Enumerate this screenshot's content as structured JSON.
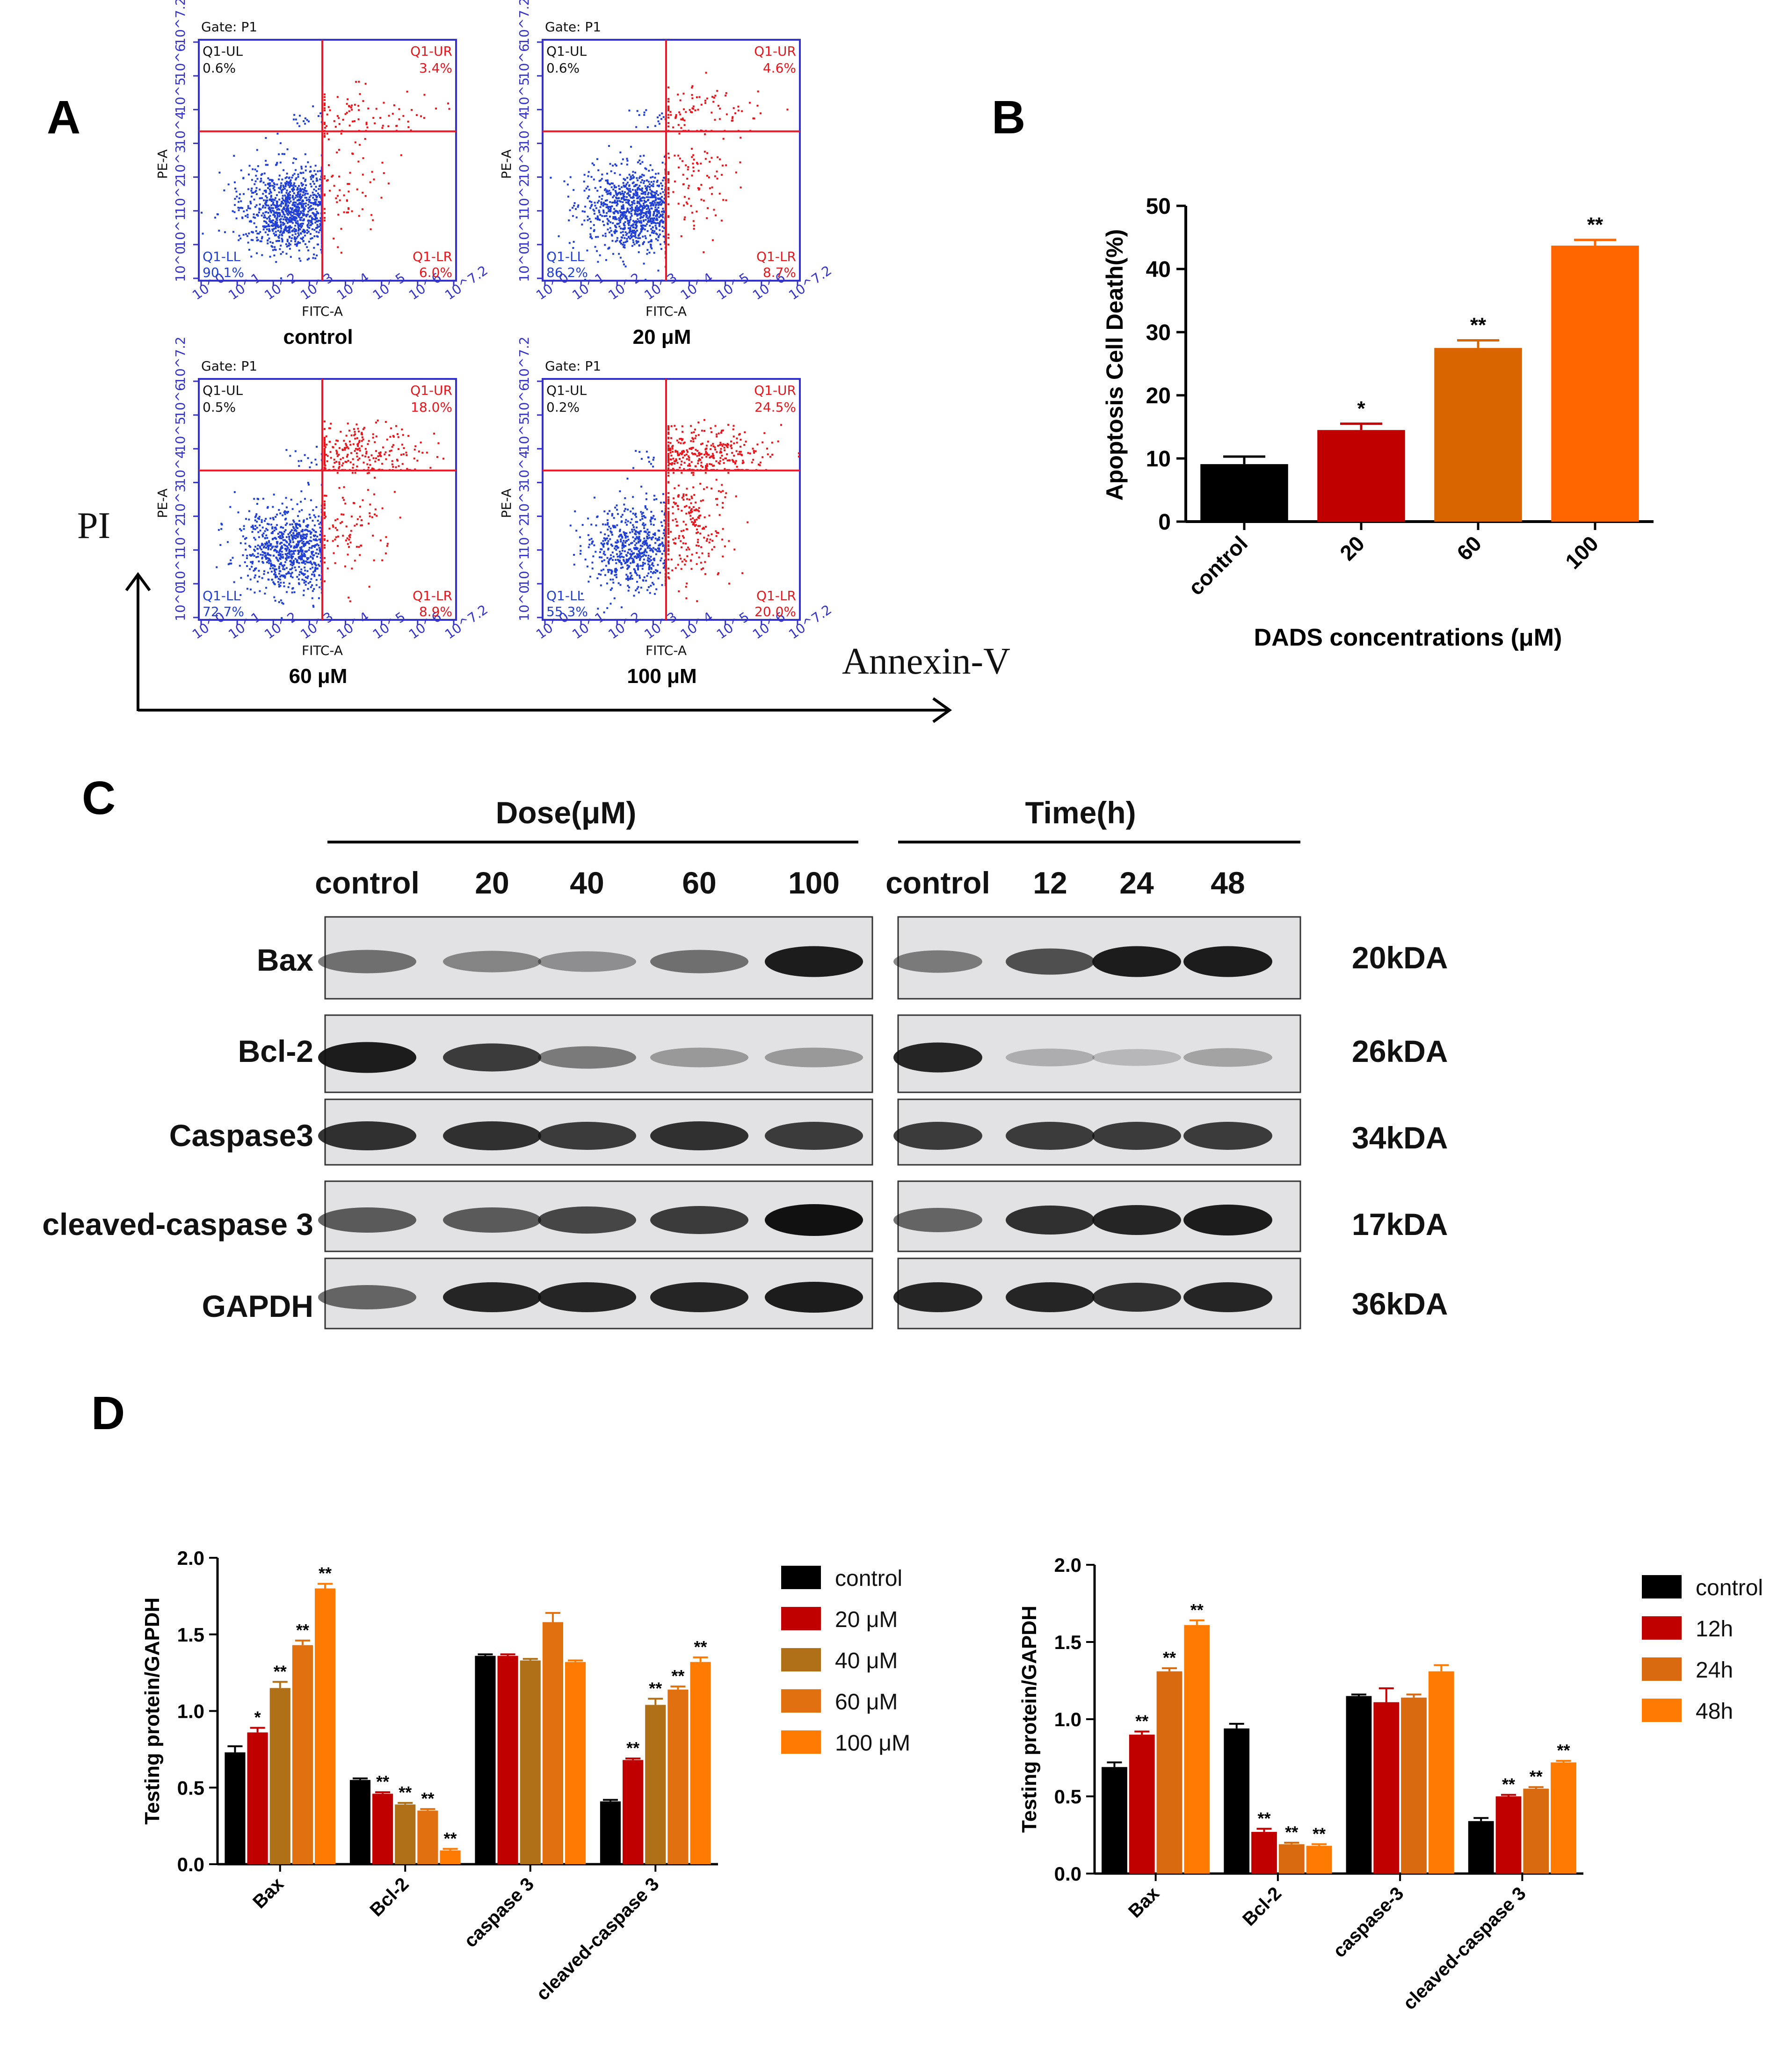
{
  "panels": {
    "a": "A",
    "b": "B",
    "c": "C",
    "d": "D"
  },
  "facs": {
    "gate": "Gate: P1",
    "x_axis": "FITC-A",
    "y_axis": "PE-A",
    "quad_names": {
      "ul": "Q1-UL",
      "ur": "Q1-UR",
      "ll": "Q1-LL",
      "lr": "Q1-LR"
    },
    "plots": [
      {
        "caption": "control",
        "ul": "0.6%",
        "ur": "3.4%",
        "ll": "90.1%",
        "lr": "6.0%"
      },
      {
        "caption": "20 μM",
        "ul": "0.6%",
        "ur": "4.6%",
        "ll": "86.2%",
        "lr": "8.7%"
      },
      {
        "caption": "60 μM",
        "ul": "0.5%",
        "ur": "18.0%",
        "ll": "72.7%",
        "lr": "8.9%"
      },
      {
        "caption": "100 μM",
        "ul": "0.2%",
        "ur": "24.5%",
        "ll": "55.3%",
        "lr": "20.0%"
      }
    ],
    "tick_labels": [
      "10^0",
      "10^1",
      "10^2",
      "10^3",
      "10^4",
      "10^5",
      "10^6",
      "10^7.2"
    ],
    "y_arrow_label": "PI",
    "x_arrow_label": "Annexin-V",
    "colors": {
      "live": "#1f3fd6",
      "apoptotic": "#e8151b",
      "gate_line": "#e81b2b",
      "frame": "#3333cc"
    }
  },
  "chart_data": [
    {
      "id": "B",
      "type": "bar",
      "title": "",
      "xlabel": "DADS concentrations (μM)",
      "ylabel": "Apoptosis Cell Death(%)",
      "categories": [
        "control",
        "20",
        "60",
        "100"
      ],
      "values": [
        9.1,
        14.5,
        27.5,
        43.7
      ],
      "errors": [
        1.2,
        1.0,
        1.2,
        0.9
      ],
      "significance": [
        "",
        "*",
        "**",
        "**"
      ],
      "colors": [
        "#000000",
        "#c00000",
        "#d96500",
        "#ff6600"
      ],
      "ylim": [
        0,
        50
      ],
      "yticks": [
        "0",
        "10",
        "20",
        "30",
        "40",
        "50"
      ]
    },
    {
      "id": "D-left",
      "type": "bar",
      "ylabel": "Testing protein/GAPDH",
      "categories": [
        "Bax",
        "Bcl-2",
        "caspase 3",
        "cleaved-caspase 3"
      ],
      "series": [
        {
          "name": "control",
          "color": "#000000",
          "values": [
            0.73,
            0.55,
            1.36,
            0.41
          ],
          "errors": [
            0.04,
            0.01,
            0.01,
            0.01
          ],
          "sig": [
            "",
            "",
            "",
            ""
          ]
        },
        {
          "name": "20 μM",
          "color": "#c00000",
          "values": [
            0.86,
            0.46,
            1.36,
            0.68
          ],
          "errors": [
            0.03,
            0.01,
            0.01,
            0.01
          ],
          "sig": [
            "*",
            "**",
            "",
            "**"
          ]
        },
        {
          "name": "40 μM",
          "color": "#b07018",
          "values": [
            1.15,
            0.39,
            1.33,
            1.04
          ],
          "errors": [
            0.04,
            0.01,
            0.01,
            0.04
          ],
          "sig": [
            "**",
            "**",
            "",
            "**"
          ]
        },
        {
          "name": "60 μM",
          "color": "#e07010",
          "values": [
            1.43,
            0.35,
            1.58,
            1.14
          ],
          "errors": [
            0.03,
            0.01,
            0.06,
            0.02
          ],
          "sig": [
            "**",
            "**",
            "",
            "**"
          ]
        },
        {
          "name": "100 μM",
          "color": "#ff7a00",
          "values": [
            1.8,
            0.09,
            1.32,
            1.32
          ],
          "errors": [
            0.03,
            0.01,
            0.01,
            0.03
          ],
          "sig": [
            "**",
            "**",
            "",
            "**"
          ]
        }
      ],
      "ylim": [
        0,
        2.0
      ],
      "yticks": [
        "0.0",
        "0.5",
        "1.0",
        "1.5",
        "2.0"
      ]
    },
    {
      "id": "D-right",
      "type": "bar",
      "ylabel": "Testing protein/GAPDH",
      "categories": [
        "Bax",
        "Bcl-2",
        "caspase-3",
        "cleaved-caspase 3"
      ],
      "series": [
        {
          "name": "control",
          "color": "#000000",
          "values": [
            0.69,
            0.94,
            1.15,
            0.34
          ],
          "errors": [
            0.03,
            0.03,
            0.01,
            0.02
          ],
          "sig": [
            "",
            "",
            "",
            ""
          ]
        },
        {
          "name": "12h",
          "color": "#c00000",
          "values": [
            0.9,
            0.27,
            1.11,
            0.5
          ],
          "errors": [
            0.02,
            0.02,
            0.09,
            0.01
          ],
          "sig": [
            "**",
            "**",
            "",
            "**"
          ]
        },
        {
          "name": "24h",
          "color": "#d96a10",
          "values": [
            1.31,
            0.19,
            1.14,
            0.55
          ],
          "errors": [
            0.02,
            0.01,
            0.02,
            0.01
          ],
          "sig": [
            "**",
            "**",
            "",
            "**"
          ]
        },
        {
          "name": "48h",
          "color": "#ff7a00",
          "values": [
            1.61,
            0.18,
            1.31,
            0.72
          ],
          "errors": [
            0.03,
            0.01,
            0.04,
            0.01
          ],
          "sig": [
            "**",
            "**",
            "",
            "**"
          ]
        }
      ],
      "ylim": [
        0,
        2.0
      ],
      "yticks": [
        "0.0",
        "0.5",
        "1.0",
        "1.5",
        "2.0"
      ]
    }
  ],
  "blot": {
    "dose_title": "Dose(μM)",
    "time_title": "Time(h)",
    "dose_lanes": [
      "control",
      "20",
      "40",
      "60",
      "100"
    ],
    "time_lanes": [
      "control",
      "12",
      "24",
      "48"
    ],
    "proteins": [
      {
        "name": "Bax",
        "kda": "20kDA",
        "dose": [
          0.55,
          0.45,
          0.4,
          0.55,
          0.95
        ],
        "time": [
          0.5,
          0.7,
          0.95,
          0.95
        ]
      },
      {
        "name": "Bcl-2",
        "kda": "26kDA",
        "dose": [
          0.95,
          0.8,
          0.5,
          0.35,
          0.35
        ],
        "time": [
          0.9,
          0.25,
          0.2,
          0.3
        ]
      },
      {
        "name": "Caspase3",
        "kda": "34kDA",
        "dose": [
          0.85,
          0.85,
          0.8,
          0.85,
          0.8
        ],
        "time": [
          0.8,
          0.8,
          0.8,
          0.8
        ]
      },
      {
        "name": "cleaved-caspase 3",
        "kda": "17kDA",
        "dose": [
          0.65,
          0.65,
          0.75,
          0.8,
          1.0
        ],
        "time": [
          0.6,
          0.85,
          0.9,
          0.95
        ]
      },
      {
        "name": "GAPDH",
        "kda": "36kDA",
        "dose": [
          0.6,
          0.9,
          0.9,
          0.9,
          0.95
        ],
        "time": [
          0.9,
          0.9,
          0.85,
          0.9
        ]
      }
    ]
  }
}
